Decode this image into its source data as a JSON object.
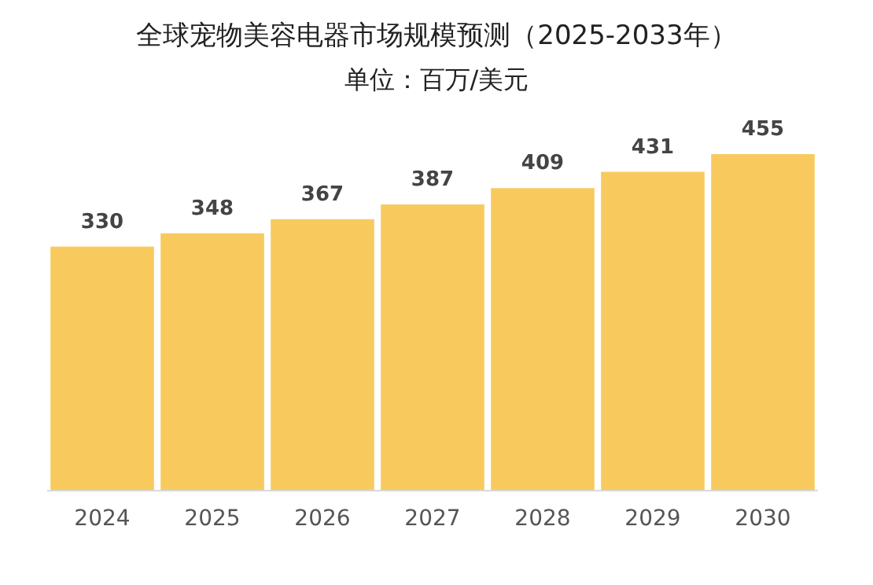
{
  "chart_data": {
    "type": "bar",
    "title": "全球宠物美容电器市场规模预测（2025-2033年）",
    "subtitle": "单位：百万/美元",
    "categories": [
      "2024",
      "2025",
      "2026",
      "2027",
      "2028",
      "2029",
      "2030"
    ],
    "values": [
      330,
      348,
      367,
      387,
      409,
      431,
      455
    ],
    "color": "#f8ca5e",
    "data_labels": true
  }
}
